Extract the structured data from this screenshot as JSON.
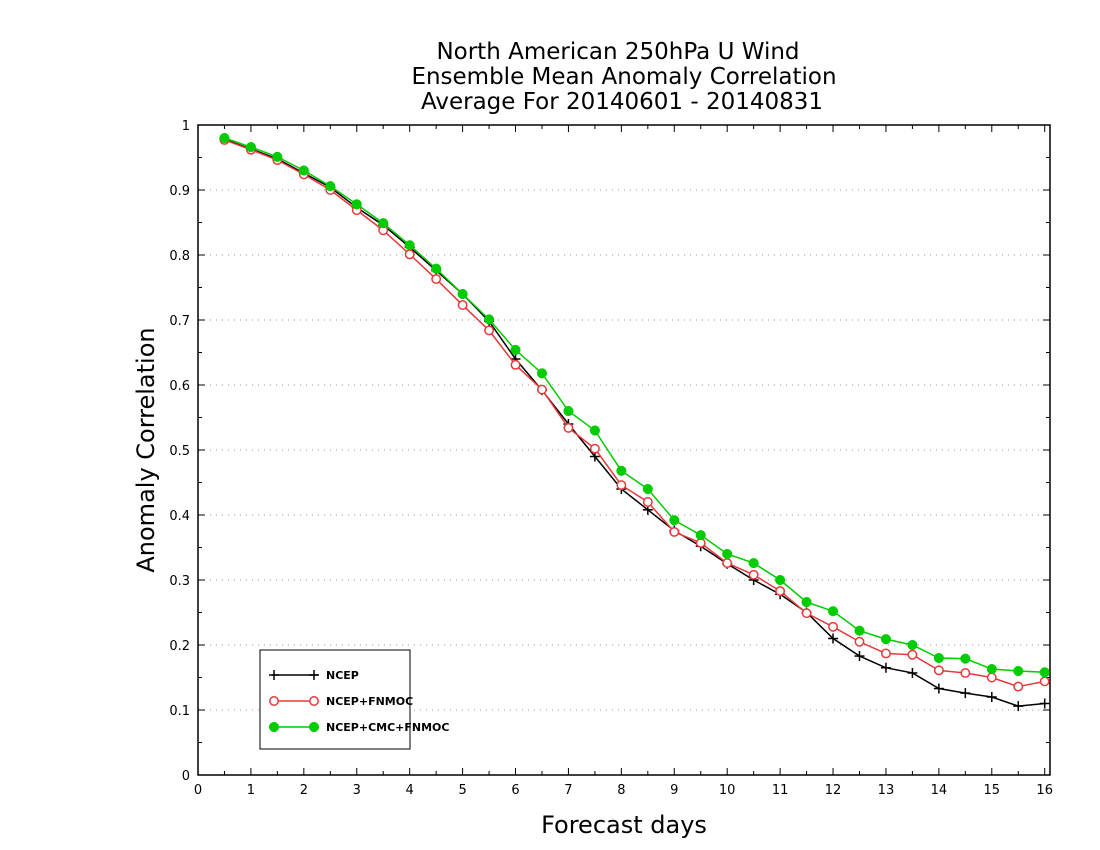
{
  "chart_data": {
    "type": "line",
    "title_lines": [
      "North American 250hPa U Wind",
      "Ensemble Mean Anomaly Correlation",
      "Average For 20140601 - 20140831"
    ],
    "xlabel": "Forecast days",
    "ylabel": "Anomaly Correlation",
    "xlim": [
      0,
      16.1
    ],
    "ylim": [
      0,
      1
    ],
    "xticks": [
      0,
      1,
      2,
      3,
      4,
      5,
      6,
      7,
      8,
      9,
      10,
      11,
      12,
      13,
      14,
      15,
      16
    ],
    "yticks": [
      0,
      0.1,
      0.2,
      0.3,
      0.4,
      0.5,
      0.6,
      0.7,
      0.8,
      0.9,
      1
    ],
    "ytick_labels": [
      "0",
      "0.1",
      "0.2",
      "0.3",
      "0.4",
      "0.5",
      "0.6",
      "0.7",
      "0.8",
      "0.9",
      "1"
    ],
    "grid": "horizontal-dotted",
    "legend_position": "bottom-left",
    "x": [
      0.5,
      1,
      1.5,
      2,
      2.5,
      3,
      3.5,
      4,
      4.5,
      5,
      5.5,
      6,
      6.5,
      7,
      7.5,
      8,
      8.5,
      9,
      9.5,
      10,
      10.5,
      11,
      11.5,
      12,
      12.5,
      13,
      13.5,
      14,
      14.5,
      15,
      15.5,
      16
    ],
    "series": [
      {
        "name": "NCEP",
        "color": "#000000",
        "marker": "plus",
        "values": [
          0.978,
          0.963,
          0.948,
          0.926,
          0.904,
          0.873,
          0.846,
          0.812,
          0.776,
          0.74,
          0.698,
          0.64,
          0.592,
          0.54,
          0.49,
          0.44,
          0.408,
          0.376,
          0.352,
          0.325,
          0.3,
          0.278,
          0.25,
          0.21,
          0.183,
          0.165,
          0.157,
          0.133,
          0.126,
          0.12,
          0.106,
          0.11
        ]
      },
      {
        "name": "NCEP+FNMOC",
        "color": "#e8393a",
        "marker": "open-circle",
        "values": [
          0.977,
          0.962,
          0.946,
          0.924,
          0.9,
          0.869,
          0.838,
          0.801,
          0.763,
          0.723,
          0.684,
          0.631,
          0.593,
          0.534,
          0.502,
          0.446,
          0.42,
          0.374,
          0.357,
          0.326,
          0.308,
          0.283,
          0.249,
          0.228,
          0.205,
          0.187,
          0.185,
          0.161,
          0.157,
          0.15,
          0.136,
          0.144
        ]
      },
      {
        "name": "NCEP+CMC+FNMOC",
        "color": "#00cc00",
        "marker": "filled-circle",
        "values": [
          0.98,
          0.966,
          0.951,
          0.93,
          0.906,
          0.878,
          0.849,
          0.815,
          0.779,
          0.74,
          0.701,
          0.654,
          0.618,
          0.56,
          0.53,
          0.468,
          0.44,
          0.392,
          0.369,
          0.34,
          0.326,
          0.3,
          0.266,
          0.252,
          0.222,
          0.209,
          0.2,
          0.18,
          0.179,
          0.163,
          0.16,
          0.158
        ]
      }
    ]
  }
}
